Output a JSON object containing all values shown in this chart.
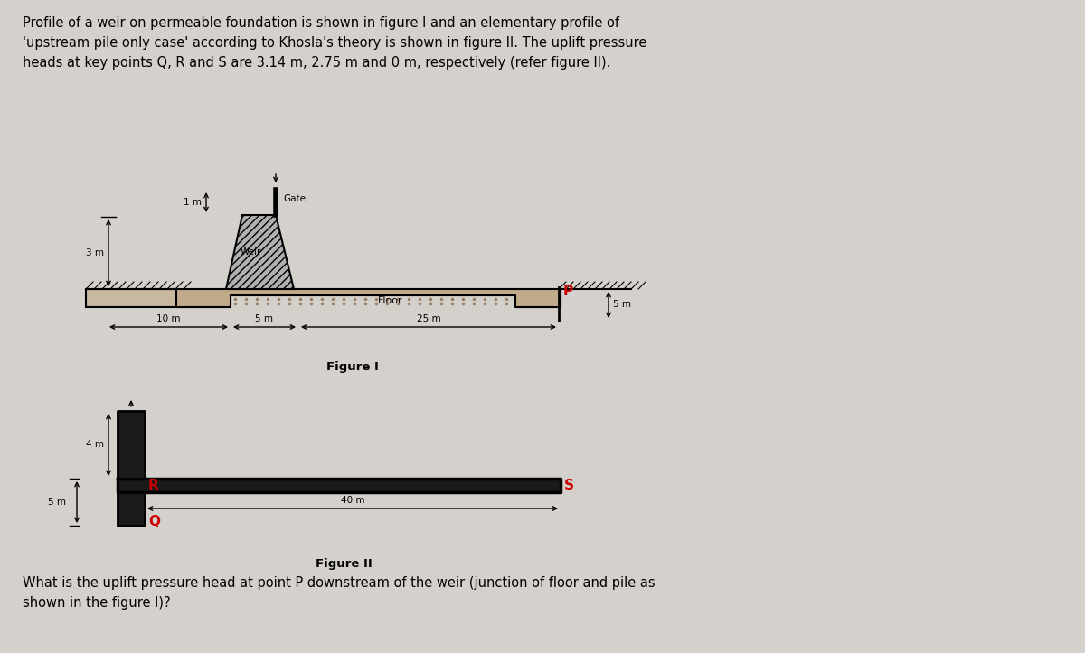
{
  "bg_color": "#d4d0cc",
  "text_color": "#000000",
  "red_color": "#cc0000",
  "title_text": "Profile of a weir on permeable foundation is shown in figure I and an elementary profile of\n'upstream pile only case' according to Khosla's theory is shown in figure II. The uplift pressure\nheads at key points Q, R and S are 3.14 m, 2.75 m and 0 m, respectively (refer figure II).",
  "fig1_label": "Figure I",
  "fig2_label": "Figure II",
  "question_text": "What is the uplift pressure head at point P downstream of the weir (junction of floor and pile as\nshown in the figure I)?",
  "fig1_dim_10m": "10 m",
  "fig1_dim_5m_weir": "5 m",
  "fig1_dim_25m": "25 m",
  "fig1_dim_3m": "3 m",
  "fig1_dim_1m": "1 m",
  "fig1_dim_5m_pile": "5 m",
  "fig2_dim_4m": "4 m",
  "fig2_dim_5m": "5 m",
  "fig2_dim_40m": "40 m",
  "label_gate": "Gate",
  "label_weir": "Weir",
  "label_floor": "Floor",
  "label_P": "P",
  "label_Q": "Q",
  "label_R": "R",
  "label_S": "S"
}
